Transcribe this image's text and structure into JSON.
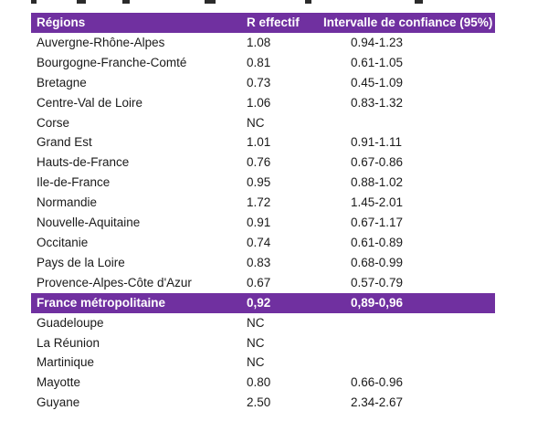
{
  "table": {
    "headers": {
      "region": "Régions",
      "r": "R effectif",
      "ci": "Intervalle de confiance (95%)"
    },
    "rows": [
      {
        "region": "Auvergne-Rhône-Alpes",
        "r": "1.08",
        "ci": "0.94-1.23"
      },
      {
        "region": "Bourgogne-Franche-Comté",
        "r": "0.81",
        "ci": "0.61-1.05"
      },
      {
        "region": "Bretagne",
        "r": "0.73",
        "ci": "0.45-1.09"
      },
      {
        "region": "Centre-Val de Loire",
        "r": "1.06",
        "ci": "0.83-1.32"
      },
      {
        "region": "Corse",
        "r": "NC",
        "ci": ""
      },
      {
        "region": "Grand Est",
        "r": "1.01",
        "ci": "0.91-1.11"
      },
      {
        "region": "Hauts-de-France",
        "r": "0.76",
        "ci": "0.67-0.86"
      },
      {
        "region": "Ile-de-France",
        "r": "0.95",
        "ci": "0.88-1.02"
      },
      {
        "region": "Normandie",
        "r": "1.72",
        "ci": "1.45-2.01"
      },
      {
        "region": "Nouvelle-Aquitaine",
        "r": "0.91",
        "ci": "0.67-1.17"
      },
      {
        "region": "Occitanie",
        "r": "0.74",
        "ci": "0.61-0.89"
      },
      {
        "region": "Pays de la Loire",
        "r": "0.83",
        "ci": "0.68-0.99"
      },
      {
        "region": "Provence-Alpes-Côte d'Azur",
        "r": "0.67",
        "ci": "0.57-0.79"
      }
    ],
    "highlight": {
      "region": "France métropolitaine",
      "r": "0,92",
      "ci": "0,89-0,96"
    },
    "overseas_rows": [
      {
        "region": "Guadeloupe",
        "r": "NC",
        "ci": ""
      },
      {
        "region": "La Réunion",
        "r": "NC",
        "ci": ""
      },
      {
        "region": "Martinique",
        "r": "NC",
        "ci": ""
      },
      {
        "region": "Mayotte",
        "r": "0.80",
        "ci": "0.66-0.96"
      },
      {
        "region": "Guyane",
        "r": "2.50",
        "ci": "2.34-2.67"
      }
    ]
  },
  "colors": {
    "header_bg": "#7030a0",
    "header_text": "#ffffff",
    "body_text": "#1a1a1a"
  }
}
